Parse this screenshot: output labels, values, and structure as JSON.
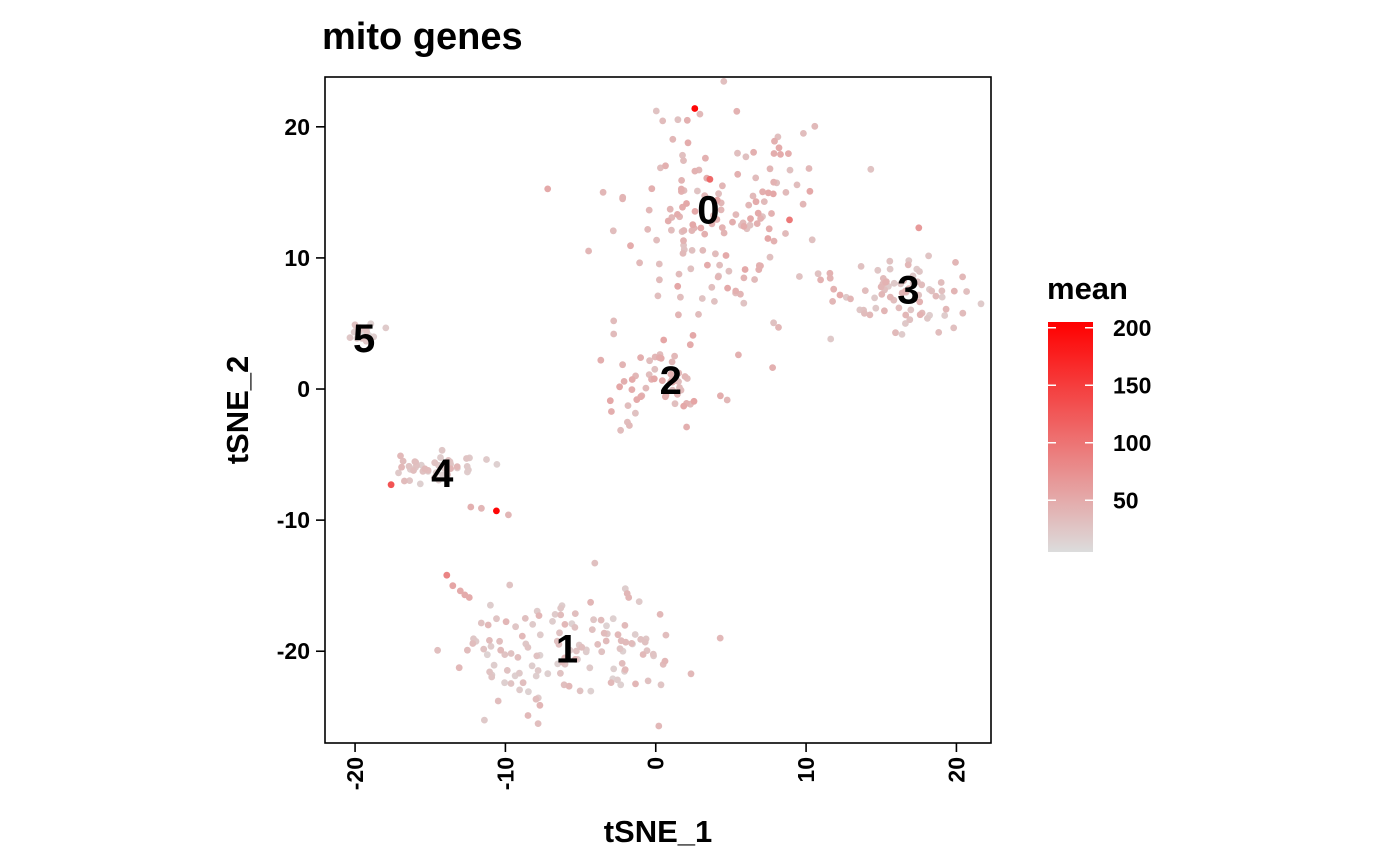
{
  "chart_data": {
    "type": "scatter",
    "title": "mito genes",
    "xlabel": "tSNE_1",
    "ylabel": "tSNE_2",
    "xlim": [
      -22,
      22.3
    ],
    "ylim": [
      -27,
      23.8
    ],
    "xticks": [
      -20,
      -10,
      0,
      10,
      20
    ],
    "yticks": [
      -20,
      -10,
      0,
      10,
      20
    ],
    "grid": false,
    "legend": {
      "title": "mean",
      "position": "right",
      "type": "colorbar",
      "range": [
        5,
        205
      ],
      "ticks": [
        50,
        100,
        150,
        200
      ],
      "colors": [
        "#dcdcdc",
        "#ff0000"
      ]
    },
    "cluster_labels": [
      {
        "label": "0",
        "x": 3.5,
        "y": 13.7
      },
      {
        "label": "1",
        "x": -5.9,
        "y": -19.8
      },
      {
        "label": "2",
        "x": 1.0,
        "y": 0.7
      },
      {
        "label": "3",
        "x": 16.8,
        "y": 7.6
      },
      {
        "label": "4",
        "x": -14.2,
        "y": -6.4
      },
      {
        "label": "5",
        "x": -19.4,
        "y": 3.9
      }
    ],
    "clusters": [
      {
        "name": "0",
        "cx": 4.0,
        "cy": 13.5,
        "sx": 3.2,
        "sy": 4.2,
        "n": 150,
        "base": 38
      },
      {
        "name": "1",
        "cx": -5.5,
        "cy": -20.0,
        "sx": 4.0,
        "sy": 2.3,
        "n": 130,
        "base": 24
      },
      {
        "name": "2",
        "cx": 0.3,
        "cy": 0.2,
        "sx": 1.7,
        "sy": 1.9,
        "n": 55,
        "base": 40
      },
      {
        "name": "3",
        "cx": 16.3,
        "cy": 7.6,
        "sx": 2.6,
        "sy": 1.4,
        "n": 75,
        "base": 28
      },
      {
        "name": "4",
        "cx": -14.8,
        "cy": -6.0,
        "sx": 1.4,
        "sy": 0.6,
        "n": 45,
        "base": 24
      },
      {
        "name": "5",
        "cx": -19.4,
        "cy": 4.3,
        "sx": 0.5,
        "sy": 0.35,
        "n": 22,
        "base": 14
      }
    ],
    "points": [
      {
        "x": 2.6,
        "y": 21.4,
        "value": 200
      },
      {
        "x": 3.6,
        "y": 16.0,
        "value": 110
      },
      {
        "x": 8.9,
        "y": 12.9,
        "value": 95
      },
      {
        "x": 17.5,
        "y": 12.3,
        "value": 65
      },
      {
        "x": -10.6,
        "y": -9.3,
        "value": 200
      },
      {
        "x": -17.6,
        "y": -7.3,
        "value": 130
      },
      {
        "x": -13.9,
        "y": -14.2,
        "value": 85
      },
      {
        "x": -13.5,
        "y": -15.0,
        "value": 55
      },
      {
        "x": -13.0,
        "y": -15.4,
        "value": 50
      },
      {
        "x": -12.7,
        "y": -15.7,
        "value": 50
      },
      {
        "x": -12.4,
        "y": -15.9,
        "value": 50
      },
      {
        "x": -12.3,
        "y": -9.0,
        "value": 45
      },
      {
        "x": -11.6,
        "y": -9.1,
        "value": 40
      },
      {
        "x": -9.8,
        "y": -9.6,
        "value": 40
      },
      {
        "x": -2.8,
        "y": 5.2,
        "value": 35
      },
      {
        "x": -2.8,
        "y": 4.2,
        "value": 35
      },
      {
        "x": 5.5,
        "y": 2.6,
        "value": 45
      },
      {
        "x": 10.8,
        "y": 8.8,
        "value": 30
      },
      {
        "x": 8.3,
        "y": 17.9,
        "value": 50
      },
      {
        "x": 8.2,
        "y": 18.4,
        "value": 50
      },
      {
        "x": 7.9,
        "y": 18.9,
        "value": 45
      },
      {
        "x": 9.8,
        "y": 14.1,
        "value": 40
      },
      {
        "x": 7.6,
        "y": 16.8,
        "value": 40
      },
      {
        "x": 2.1,
        "y": 20.5,
        "value": 45
      },
      {
        "x": -1.9,
        "y": -15.6,
        "value": 40
      },
      {
        "x": -1.8,
        "y": -15.9,
        "value": 40
      },
      {
        "x": -2.3,
        "y": -19.2,
        "value": 35
      },
      {
        "x": -1.6,
        "y": -19.4,
        "value": 35
      },
      {
        "x": -1.0,
        "y": -19.1,
        "value": 30
      },
      {
        "x": -0.7,
        "y": -19.3,
        "value": 30
      }
    ]
  }
}
